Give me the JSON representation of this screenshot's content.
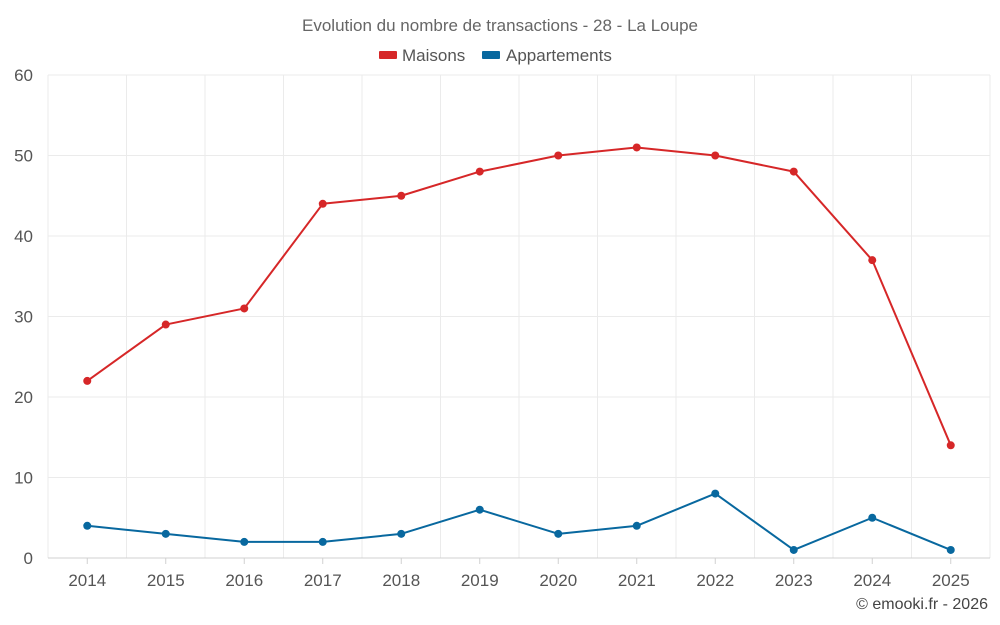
{
  "chart_data": {
    "type": "line",
    "title": "Evolution du nombre de transactions - 28 - La Loupe",
    "categories": [
      "2014",
      "2015",
      "2016",
      "2017",
      "2018",
      "2019",
      "2020",
      "2021",
      "2022",
      "2023",
      "2024",
      "2025"
    ],
    "series": [
      {
        "name": "Maisons",
        "color": "#d62728",
        "values": [
          22,
          29,
          31,
          44,
          45,
          48,
          50,
          51,
          50,
          48,
          37,
          14
        ]
      },
      {
        "name": "Appartements",
        "color": "#08689f",
        "values": [
          4,
          3,
          2,
          2,
          3,
          6,
          3,
          4,
          8,
          1,
          5,
          1
        ]
      }
    ],
    "ylim": [
      0,
      60
    ],
    "yticks": [
      "0",
      "10",
      "20",
      "30",
      "40",
      "50",
      "60"
    ],
    "xlabel": "",
    "ylabel": "",
    "grid": true,
    "legend": "top-center"
  },
  "credit": "© emooki.fr - 2026"
}
